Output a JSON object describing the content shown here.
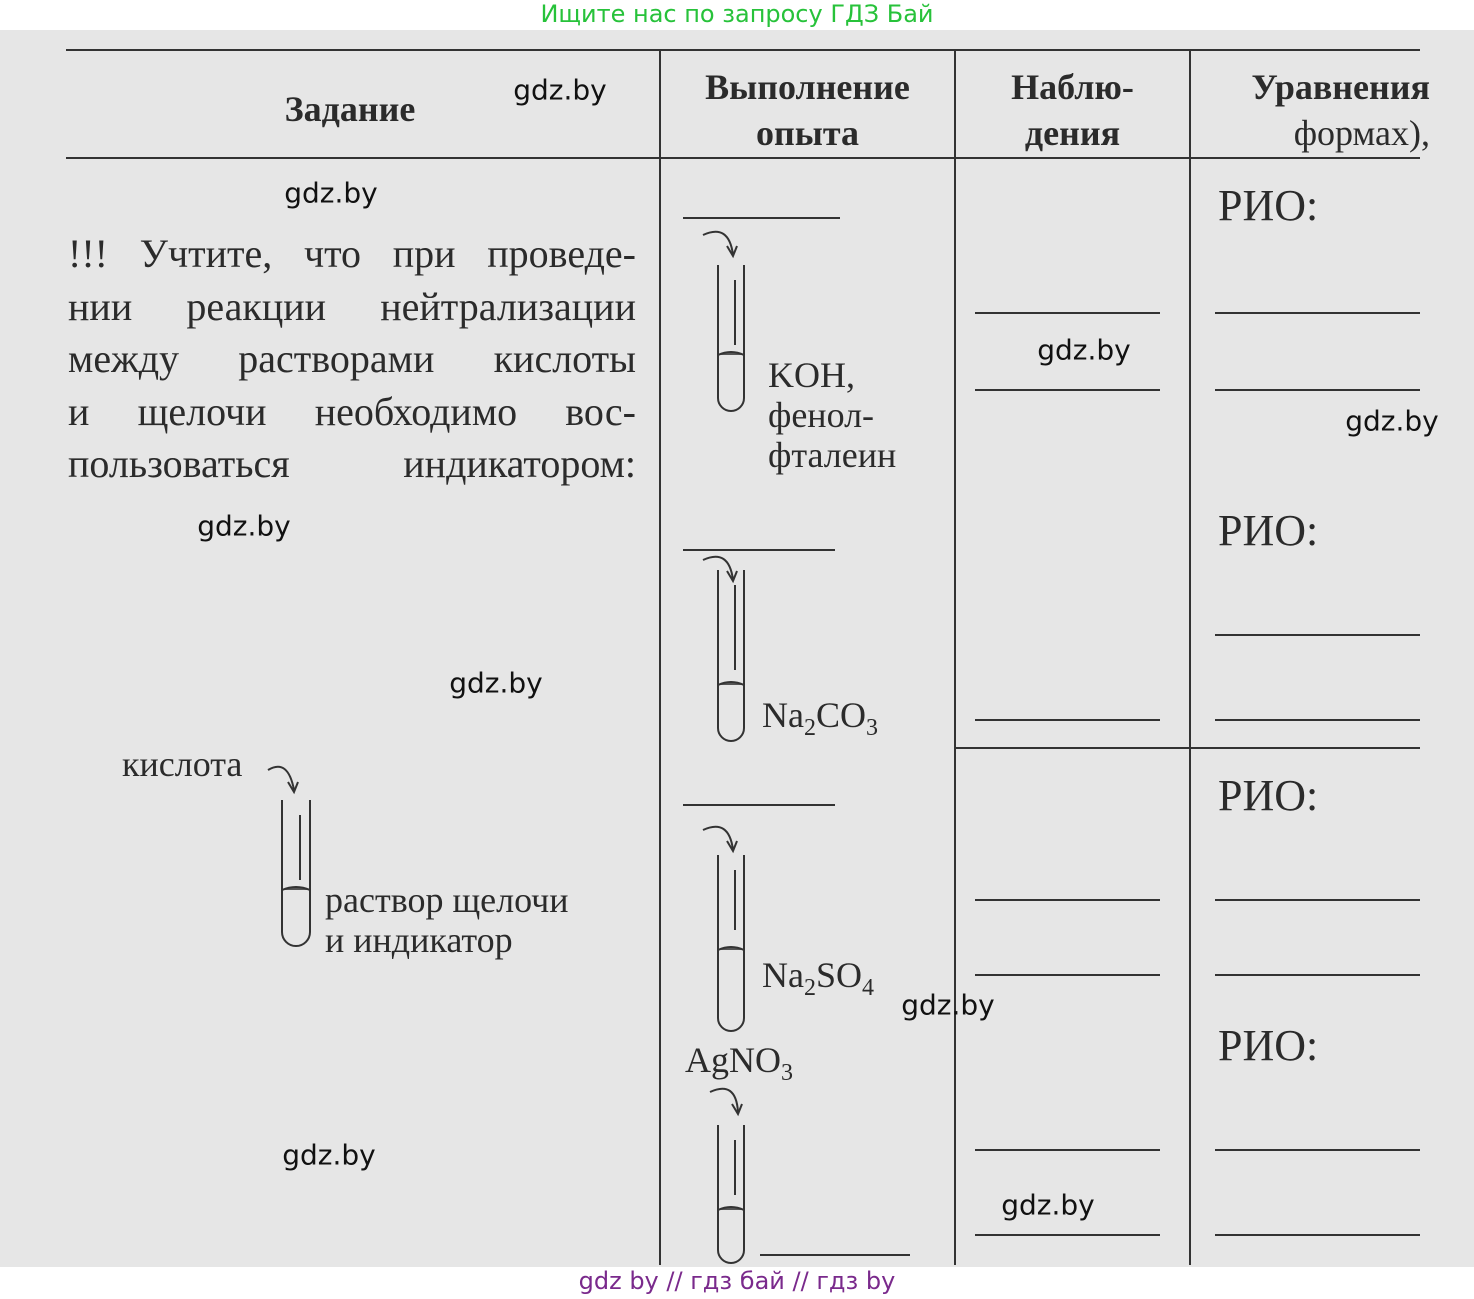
{
  "banner": "Ищите нас по запросу ГДЗ Бай",
  "footer": "gdz by  //  гдз бай  //  гдз by",
  "table": {
    "headers": [
      [
        "Задание"
      ],
      [
        "Выполнение",
        "опыта"
      ],
      [
        "Наблю-",
        "дения"
      ],
      [
        "Уравнения",
        "формах),"
      ]
    ]
  },
  "note": {
    "lines": [
      "!!! Учтите, что при проведе-",
      "нии реакции нейтрализации",
      "между растворами кислоты",
      "и щелочи необходимо вос-",
      "пользоваться индикатором:"
    ]
  },
  "diagram": {
    "acid": "кислота",
    "solution": [
      "раствор щелочи",
      "и индикатор"
    ]
  },
  "experiments": [
    {
      "reagent": [
        "KOH,",
        "фенол-",
        "фталеин"
      ]
    },
    {
      "formula": [
        "Na",
        "2",
        "CO",
        "3"
      ]
    },
    {
      "formula": [
        "Na",
        "2",
        "SO",
        "4"
      ]
    },
    {
      "formula": [
        "AgNO",
        "3"
      ]
    }
  ],
  "equation_labels": [
    "РИО:",
    "РИО:",
    "РИО:",
    "РИО:"
  ],
  "watermarks": [
    "gdz.by",
    "gdz.by",
    "gdz.by",
    "gdz.by",
    "gdz.by",
    "gdz.by",
    "gdz.by",
    "gdz.by",
    "gdz.by"
  ]
}
